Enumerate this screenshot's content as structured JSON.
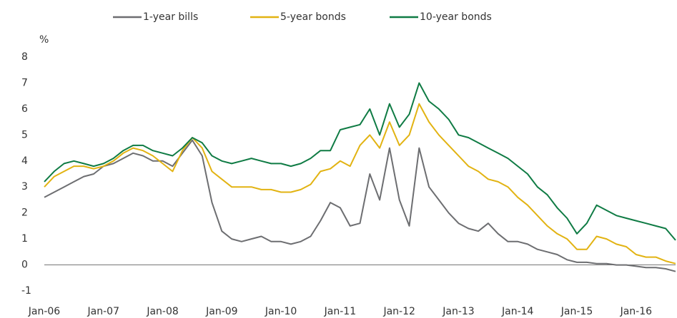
{
  "chart_data": {
    "type": "line",
    "y_axis_label": "%",
    "categories": [
      "Jan-06",
      null,
      null,
      null,
      null,
      null,
      "Jan-07",
      null,
      null,
      null,
      null,
      null,
      "Jan-08",
      null,
      null,
      null,
      null,
      null,
      "Jan-09",
      null,
      null,
      null,
      null,
      null,
      "Jan-10",
      null,
      null,
      null,
      null,
      null,
      "Jan-11",
      null,
      null,
      null,
      null,
      null,
      "Jan-12",
      null,
      null,
      null,
      null,
      null,
      "Jan-13",
      null,
      null,
      null,
      null,
      null,
      "Jan-14",
      null,
      null,
      null,
      null,
      null,
      "Jan-15",
      null,
      null,
      null,
      null,
      null,
      "Jan-16",
      null,
      null,
      null,
      null
    ],
    "series": [
      {
        "name": "1-year bills",
        "color": "#6d6e71",
        "values": [
          2.6,
          2.8,
          3.0,
          3.2,
          3.4,
          3.5,
          3.8,
          3.9,
          4.1,
          4.3,
          4.2,
          4.0,
          4.0,
          3.8,
          4.3,
          4.8,
          4.2,
          2.4,
          1.3,
          1.0,
          0.9,
          1.0,
          1.1,
          0.9,
          0.9,
          0.8,
          0.9,
          1.1,
          1.7,
          2.4,
          2.2,
          1.5,
          1.6,
          3.5,
          2.5,
          4.5,
          2.5,
          1.5,
          4.5,
          3.0,
          2.5,
          2.0,
          1.6,
          1.4,
          1.3,
          1.6,
          1.2,
          0.9,
          0.9,
          0.8,
          0.6,
          0.5,
          0.4,
          0.2,
          0.1,
          0.1,
          0.05,
          0.05,
          0.0,
          0.0,
          -0.05,
          -0.1,
          -0.1,
          -0.15,
          -0.25
        ]
      },
      {
        "name": "5-year bonds",
        "color": "#e2b312",
        "values": [
          3.0,
          3.4,
          3.6,
          3.8,
          3.8,
          3.7,
          3.8,
          4.0,
          4.3,
          4.5,
          4.4,
          4.2,
          3.9,
          3.6,
          4.4,
          4.9,
          4.5,
          3.6,
          3.3,
          3.0,
          3.0,
          3.0,
          2.9,
          2.9,
          2.8,
          2.8,
          2.9,
          3.1,
          3.6,
          3.7,
          4.0,
          3.8,
          4.6,
          5.0,
          4.5,
          5.5,
          4.6,
          5.0,
          6.2,
          5.5,
          5.0,
          4.6,
          4.2,
          3.8,
          3.6,
          3.3,
          3.2,
          3.0,
          2.6,
          2.3,
          1.9,
          1.5,
          1.2,
          1.0,
          0.6,
          0.6,
          1.1,
          1.0,
          0.8,
          0.7,
          0.4,
          0.3,
          0.3,
          0.15,
          0.05
        ]
      },
      {
        "name": "10-year bonds",
        "color": "#0f7b44",
        "values": [
          3.2,
          3.6,
          3.9,
          4.0,
          3.9,
          3.8,
          3.9,
          4.1,
          4.4,
          4.6,
          4.6,
          4.4,
          4.3,
          4.2,
          4.5,
          4.9,
          4.7,
          4.2,
          4.0,
          3.9,
          4.0,
          4.1,
          4.0,
          3.9,
          3.9,
          3.8,
          3.9,
          4.1,
          4.4,
          4.4,
          5.2,
          5.3,
          5.4,
          6.0,
          5.0,
          6.2,
          5.3,
          5.8,
          7.0,
          6.3,
          6.0,
          5.6,
          5.0,
          4.9,
          4.7,
          4.5,
          4.3,
          4.1,
          3.8,
          3.5,
          3.0,
          2.7,
          2.2,
          1.8,
          1.2,
          1.6,
          2.3,
          2.1,
          1.9,
          1.8,
          1.7,
          1.6,
          1.5,
          1.4,
          0.95
        ]
      }
    ],
    "ylim": [
      -1,
      8
    ],
    "yticks": [
      -1,
      0,
      1,
      2,
      3,
      4,
      5,
      6,
      7,
      8
    ],
    "zero_line": true,
    "grid": false
  }
}
